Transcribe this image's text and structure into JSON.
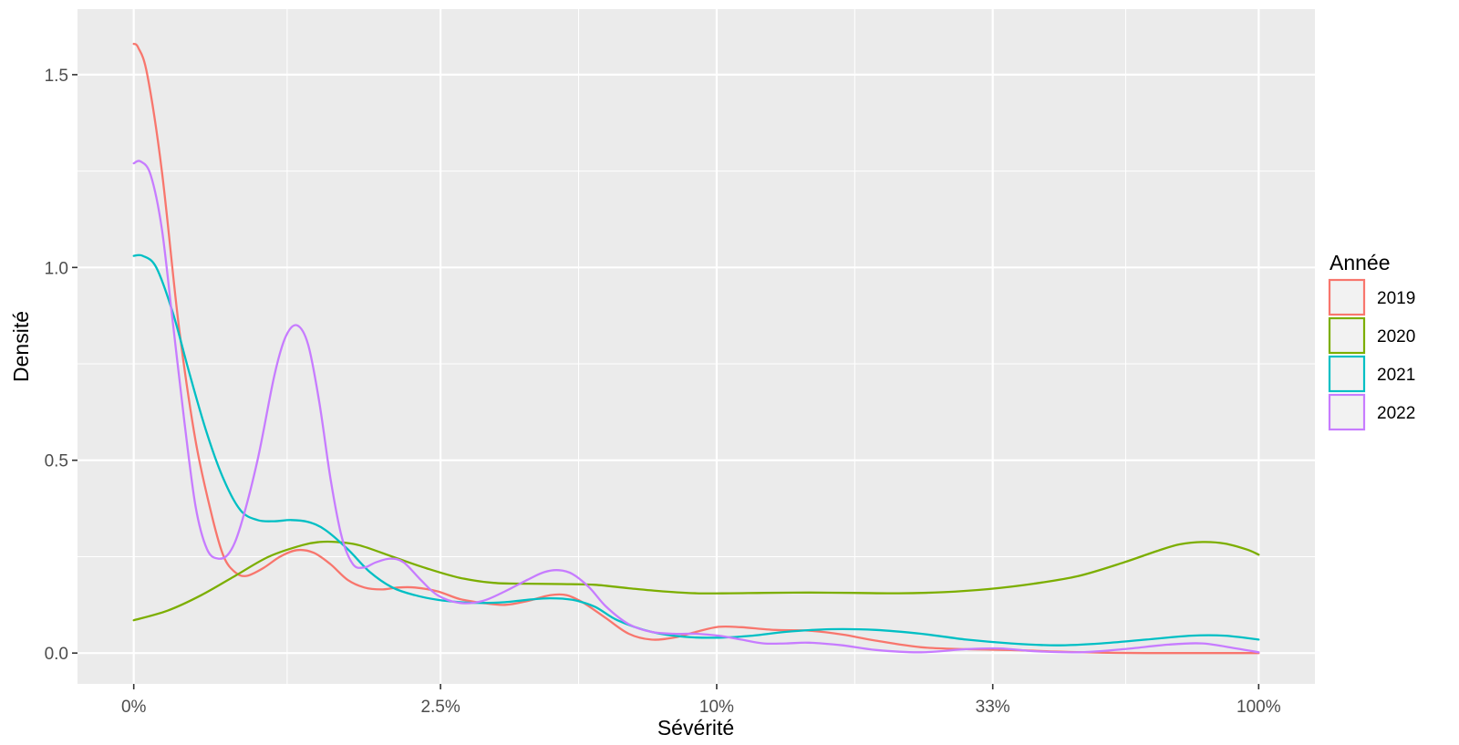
{
  "chart_data": {
    "type": "line",
    "xlabel": "Sévérité",
    "ylabel": "Densité",
    "x_scale": "transformed (percent)",
    "x_ticks": [
      {
        "label": "0%",
        "pos": 0.0
      },
      {
        "label": "2.5%",
        "pos": 0.2727
      },
      {
        "label": "10%",
        "pos": 0.5182
      },
      {
        "label": "33%",
        "pos": 0.7636
      },
      {
        "label": "100%",
        "pos": 1.0
      }
    ],
    "y_ticks": [
      0.0,
      0.5,
      1.0,
      1.5
    ],
    "y_tick_labels": [
      "0.0",
      "0.5",
      "1.0",
      "1.5"
    ],
    "xlim_pos": [
      -0.05,
      1.05
    ],
    "ylim": [
      -0.08,
      1.67
    ],
    "grid": true,
    "legend": {
      "title": "Année",
      "position": "right"
    },
    "series": [
      {
        "name": "2019",
        "color": "#F8766D",
        "points": [
          [
            0,
            1.58
          ],
          [
            0.004,
            1.57
          ],
          [
            0.012,
            1.5
          ],
          [
            0.025,
            1.25
          ],
          [
            0.04,
            0.85
          ],
          [
            0.055,
            0.55
          ],
          [
            0.07,
            0.35
          ],
          [
            0.08,
            0.25
          ],
          [
            0.09,
            0.21
          ],
          [
            0.1,
            0.2
          ],
          [
            0.115,
            0.22
          ],
          [
            0.13,
            0.25
          ],
          [
            0.145,
            0.267
          ],
          [
            0.16,
            0.26
          ],
          [
            0.175,
            0.23
          ],
          [
            0.19,
            0.19
          ],
          [
            0.205,
            0.17
          ],
          [
            0.22,
            0.165
          ],
          [
            0.235,
            0.17
          ],
          [
            0.25,
            0.17
          ],
          [
            0.27,
            0.16
          ],
          [
            0.29,
            0.14
          ],
          [
            0.31,
            0.13
          ],
          [
            0.33,
            0.125
          ],
          [
            0.35,
            0.135
          ],
          [
            0.37,
            0.15
          ],
          [
            0.385,
            0.15
          ],
          [
            0.4,
            0.13
          ],
          [
            0.42,
            0.09
          ],
          [
            0.44,
            0.05
          ],
          [
            0.46,
            0.035
          ],
          [
            0.48,
            0.04
          ],
          [
            0.5,
            0.055
          ],
          [
            0.52,
            0.068
          ],
          [
            0.54,
            0.067
          ],
          [
            0.57,
            0.06
          ],
          [
            0.6,
            0.058
          ],
          [
            0.63,
            0.048
          ],
          [
            0.66,
            0.032
          ],
          [
            0.7,
            0.015
          ],
          [
            0.74,
            0.01
          ],
          [
            0.78,
            0.008
          ],
          [
            0.82,
            0.004
          ],
          [
            0.86,
            0.001
          ],
          [
            0.9,
            0.0
          ],
          [
            0.95,
            0.0
          ],
          [
            1.0,
            0.0
          ]
        ]
      },
      {
        "name": "2020",
        "color": "#7CAE00",
        "points": [
          [
            0,
            0.085
          ],
          [
            0.03,
            0.11
          ],
          [
            0.06,
            0.15
          ],
          [
            0.09,
            0.2
          ],
          [
            0.12,
            0.25
          ],
          [
            0.15,
            0.28
          ],
          [
            0.165,
            0.288
          ],
          [
            0.18,
            0.288
          ],
          [
            0.2,
            0.28
          ],
          [
            0.23,
            0.25
          ],
          [
            0.26,
            0.22
          ],
          [
            0.29,
            0.195
          ],
          [
            0.32,
            0.182
          ],
          [
            0.35,
            0.18
          ],
          [
            0.38,
            0.179
          ],
          [
            0.41,
            0.177
          ],
          [
            0.44,
            0.168
          ],
          [
            0.47,
            0.16
          ],
          [
            0.5,
            0.155
          ],
          [
            0.53,
            0.155
          ],
          [
            0.56,
            0.156
          ],
          [
            0.6,
            0.157
          ],
          [
            0.64,
            0.156
          ],
          [
            0.68,
            0.155
          ],
          [
            0.72,
            0.158
          ],
          [
            0.76,
            0.166
          ],
          [
            0.8,
            0.18
          ],
          [
            0.84,
            0.2
          ],
          [
            0.88,
            0.235
          ],
          [
            0.91,
            0.265
          ],
          [
            0.93,
            0.282
          ],
          [
            0.95,
            0.288
          ],
          [
            0.97,
            0.284
          ],
          [
            0.99,
            0.268
          ],
          [
            1.0,
            0.255
          ]
        ]
      },
      {
        "name": "2021",
        "color": "#00BFC4",
        "points": [
          [
            0,
            1.03
          ],
          [
            0.008,
            1.03
          ],
          [
            0.02,
            1.0
          ],
          [
            0.035,
            0.88
          ],
          [
            0.05,
            0.72
          ],
          [
            0.065,
            0.57
          ],
          [
            0.08,
            0.45
          ],
          [
            0.095,
            0.37
          ],
          [
            0.11,
            0.345
          ],
          [
            0.125,
            0.342
          ],
          [
            0.14,
            0.345
          ],
          [
            0.155,
            0.34
          ],
          [
            0.17,
            0.32
          ],
          [
            0.19,
            0.27
          ],
          [
            0.21,
            0.21
          ],
          [
            0.23,
            0.17
          ],
          [
            0.25,
            0.15
          ],
          [
            0.27,
            0.138
          ],
          [
            0.29,
            0.132
          ],
          [
            0.31,
            0.13
          ],
          [
            0.33,
            0.132
          ],
          [
            0.35,
            0.138
          ],
          [
            0.37,
            0.142
          ],
          [
            0.39,
            0.138
          ],
          [
            0.41,
            0.12
          ],
          [
            0.43,
            0.085
          ],
          [
            0.46,
            0.055
          ],
          [
            0.49,
            0.042
          ],
          [
            0.52,
            0.04
          ],
          [
            0.55,
            0.045
          ],
          [
            0.58,
            0.055
          ],
          [
            0.62,
            0.062
          ],
          [
            0.66,
            0.06
          ],
          [
            0.7,
            0.05
          ],
          [
            0.74,
            0.035
          ],
          [
            0.78,
            0.025
          ],
          [
            0.82,
            0.02
          ],
          [
            0.86,
            0.025
          ],
          [
            0.9,
            0.035
          ],
          [
            0.94,
            0.045
          ],
          [
            0.97,
            0.045
          ],
          [
            1.0,
            0.035
          ]
        ]
      },
      {
        "name": "2022",
        "color": "#C77CFF",
        "points": [
          [
            0,
            1.27
          ],
          [
            0.006,
            1.275
          ],
          [
            0.015,
            1.24
          ],
          [
            0.025,
            1.1
          ],
          [
            0.035,
            0.85
          ],
          [
            0.045,
            0.6
          ],
          [
            0.055,
            0.38
          ],
          [
            0.065,
            0.27
          ],
          [
            0.075,
            0.245
          ],
          [
            0.085,
            0.26
          ],
          [
            0.095,
            0.33
          ],
          [
            0.11,
            0.5
          ],
          [
            0.125,
            0.72
          ],
          [
            0.135,
            0.82
          ],
          [
            0.145,
            0.85
          ],
          [
            0.155,
            0.8
          ],
          [
            0.165,
            0.65
          ],
          [
            0.175,
            0.45
          ],
          [
            0.185,
            0.3
          ],
          [
            0.195,
            0.23
          ],
          [
            0.205,
            0.222
          ],
          [
            0.215,
            0.235
          ],
          [
            0.228,
            0.245
          ],
          [
            0.24,
            0.235
          ],
          [
            0.255,
            0.19
          ],
          [
            0.27,
            0.15
          ],
          [
            0.29,
            0.13
          ],
          [
            0.31,
            0.135
          ],
          [
            0.33,
            0.16
          ],
          [
            0.35,
            0.19
          ],
          [
            0.365,
            0.21
          ],
          [
            0.378,
            0.215
          ],
          [
            0.39,
            0.205
          ],
          [
            0.405,
            0.17
          ],
          [
            0.42,
            0.12
          ],
          [
            0.44,
            0.075
          ],
          [
            0.46,
            0.055
          ],
          [
            0.48,
            0.05
          ],
          [
            0.5,
            0.05
          ],
          [
            0.52,
            0.045
          ],
          [
            0.54,
            0.035
          ],
          [
            0.56,
            0.025
          ],
          [
            0.58,
            0.025
          ],
          [
            0.6,
            0.027
          ],
          [
            0.63,
            0.02
          ],
          [
            0.66,
            0.008
          ],
          [
            0.7,
            0.002
          ],
          [
            0.74,
            0.01
          ],
          [
            0.77,
            0.012
          ],
          [
            0.8,
            0.005
          ],
          [
            0.84,
            0.002
          ],
          [
            0.88,
            0.01
          ],
          [
            0.92,
            0.022
          ],
          [
            0.95,
            0.025
          ],
          [
            0.98,
            0.012
          ],
          [
            1.0,
            0.002
          ]
        ]
      }
    ]
  }
}
